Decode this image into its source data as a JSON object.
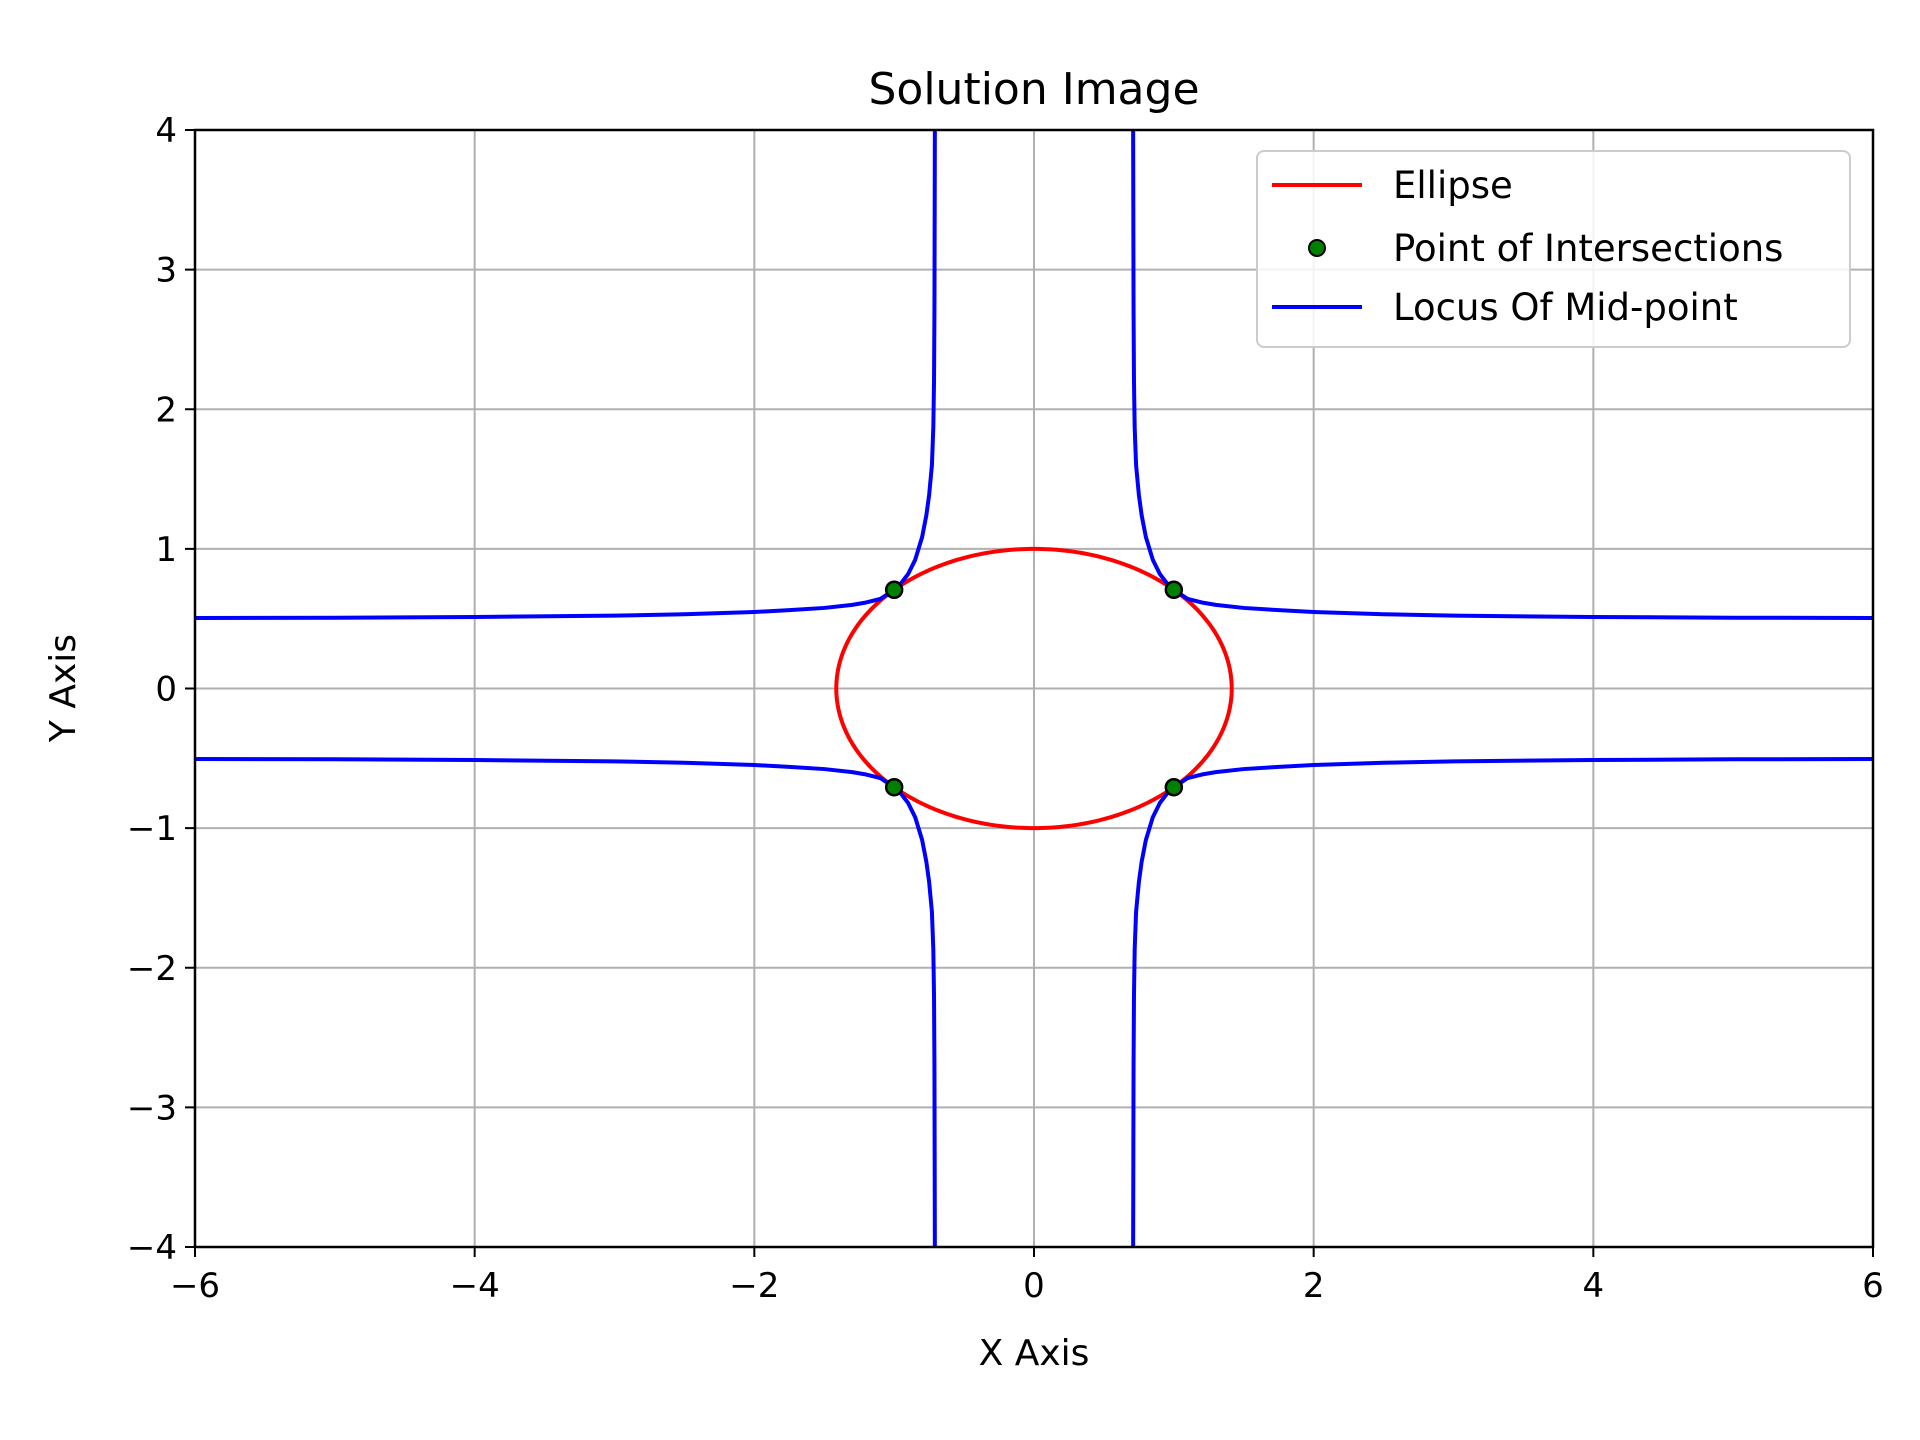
{
  "chart_data": {
    "type": "line",
    "title": "Solution Image",
    "xlabel": "X Axis",
    "ylabel": "Y Axis",
    "xlim": [
      -6,
      6
    ],
    "ylim": [
      -4,
      4
    ],
    "xticks": [
      -6,
      -4,
      -2,
      0,
      2,
      4,
      6
    ],
    "yticks": [
      -4,
      -3,
      -2,
      -1,
      0,
      1,
      2,
      3,
      4
    ],
    "xtick_labels": [
      "−6",
      "−4",
      "−2",
      "0",
      "2",
      "4",
      "6"
    ],
    "ytick_labels": [
      "−4",
      "−3",
      "−2",
      "−1",
      "0",
      "1",
      "2",
      "3",
      "4"
    ],
    "grid": true,
    "legend_position": "top-right",
    "legend": [
      {
        "label": "Ellipse",
        "kind": "line",
        "color": "#ff0000"
      },
      {
        "label": "Point of Intersections",
        "kind": "marker",
        "color": "#008000"
      },
      {
        "label": "Locus Of Mid-point",
        "kind": "line",
        "color": "#0000ff"
      }
    ],
    "series": [
      {
        "name": "Ellipse",
        "kind": "parametric-ellipse",
        "color": "#ff0000",
        "center": [
          0,
          0
        ],
        "semi_axis_x": 1.414,
        "semi_axis_y": 1.0
      },
      {
        "name": "Locus Of Mid-point",
        "kind": "implicit-curve",
        "color": "#0000ff",
        "equation": "1/(2x^2) + 1/(4y^2) = 1",
        "points": [
          [
            -6.0,
            0.505
          ],
          [
            -5.0,
            0.507
          ],
          [
            -4.0,
            0.512
          ],
          [
            -3.0,
            0.522
          ],
          [
            -2.5,
            0.532
          ],
          [
            -2.0,
            0.548
          ],
          [
            -1.75,
            0.561
          ],
          [
            -1.5,
            0.577
          ],
          [
            -1.3,
            0.599
          ],
          [
            -1.2,
            0.616
          ],
          [
            -1.1,
            0.641
          ],
          [
            -1.0,
            0.707
          ],
          [
            -0.95,
            0.755
          ],
          [
            -0.9,
            0.82
          ],
          [
            -0.85,
            0.921
          ],
          [
            -0.8,
            1.085
          ],
          [
            -0.77,
            1.24
          ],
          [
            -0.75,
            1.386
          ],
          [
            -0.73,
            1.6
          ],
          [
            -0.72,
            1.87
          ],
          [
            -0.715,
            2.2
          ],
          [
            -0.712,
            2.7
          ],
          [
            -0.709,
            4.0
          ]
        ]
      },
      {
        "name": "Point of Intersections",
        "kind": "scatter",
        "color": "#008000",
        "points": [
          [
            -1.0,
            0.707
          ],
          [
            1.0,
            0.707
          ],
          [
            -1.0,
            -0.707
          ],
          [
            1.0,
            -0.707
          ]
        ]
      }
    ]
  },
  "colors": {
    "ellipse": "#ff0000",
    "locus": "#0000ff",
    "intersection_fill": "#008000",
    "intersection_edge": "#000000",
    "grid": "#b0b0b0",
    "legend_border": "#cccccc"
  }
}
